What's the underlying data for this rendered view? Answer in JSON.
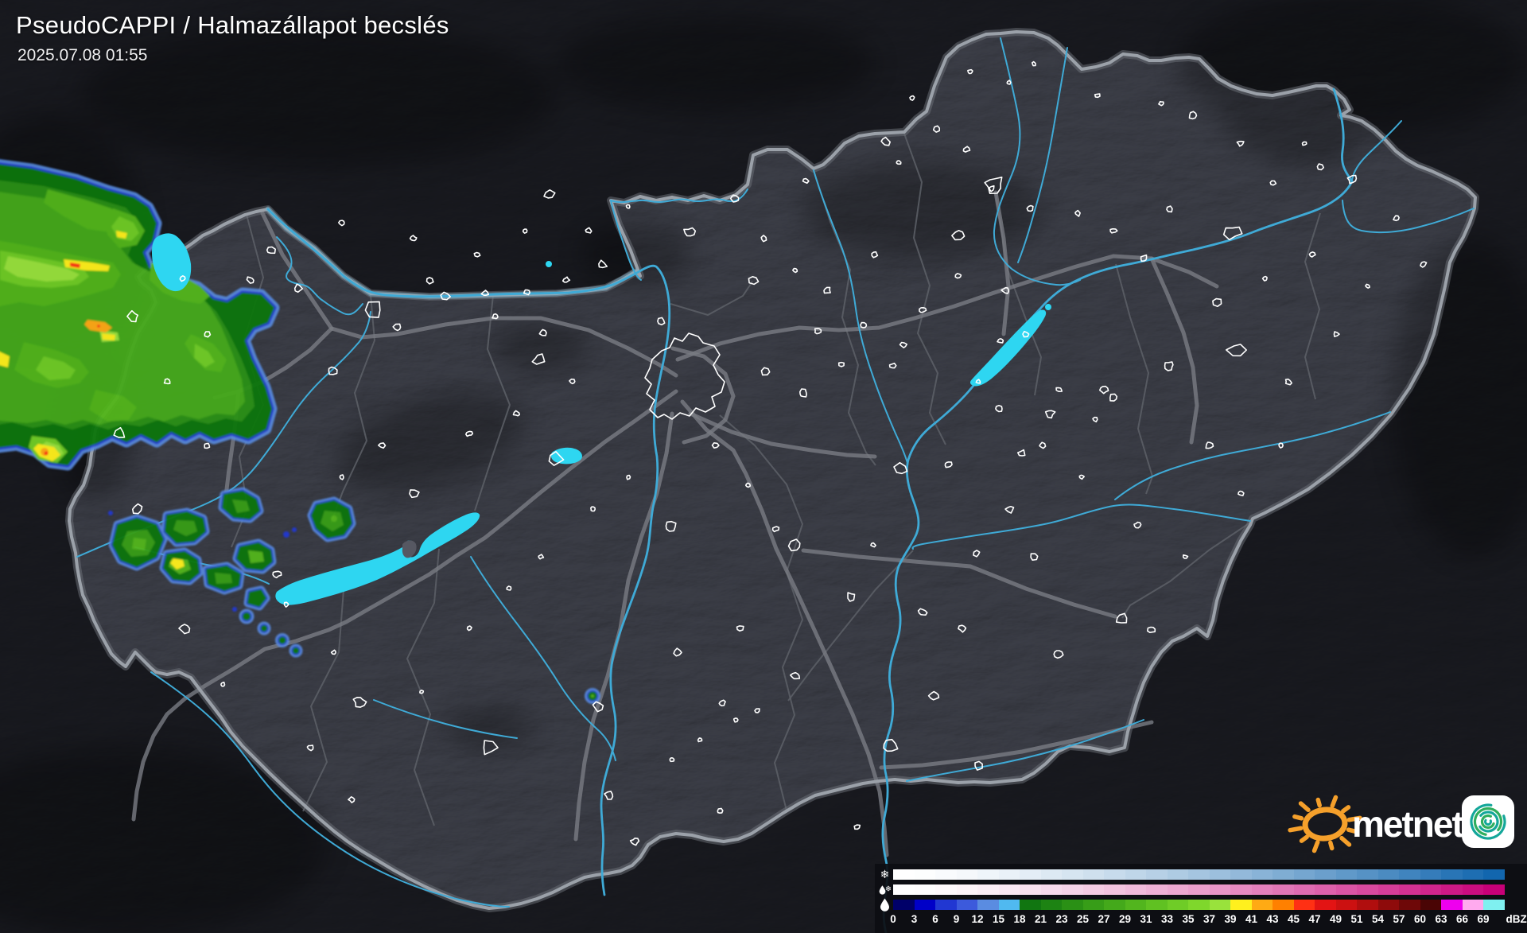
{
  "header": {
    "product_title": "PseudoCAPPI  / Halmazállapot becslés",
    "timestamp": "2025.07.08 01:55"
  },
  "branding": {
    "logo_text": "metnet",
    "sun_icon": "sun-icon",
    "sun_color": "#F5A02B",
    "app_icon": "metnet-spiral-app-icon",
    "app_icon_spiral_color": "#14A79A",
    "app_icon_spiral_color2": "#30AE5E"
  },
  "legend": {
    "unit_label": "dBZ",
    "tick_labels": [
      "0",
      "3",
      "6",
      "9",
      "12",
      "15",
      "18",
      "21",
      "23",
      "25",
      "27",
      "29",
      "31",
      "33",
      "35",
      "37",
      "39",
      "41",
      "43",
      "45",
      "47",
      "49",
      "51",
      "54",
      "57",
      "60",
      "63",
      "66",
      "69"
    ],
    "rows": [
      {
        "id": "snow",
        "icon": "snowflake-icon",
        "colors": [
          "#FFFFFF",
          "#FDFEFE",
          "#F9FBFD",
          "#F5F8FB",
          "#EFF5FA",
          "#EAF1F8",
          "#E4EDF6",
          "#DDE9F3",
          "#D6E5F1",
          "#CFE0EE",
          "#C7DBEC",
          "#BFD6E9",
          "#B7D0E6",
          "#AECBE3",
          "#A5C5E0",
          "#9CBFDD",
          "#93B9DA",
          "#89B3D7",
          "#7FADD3",
          "#75A6D0",
          "#6B9FCC",
          "#6099C9",
          "#5692C5",
          "#4B8BC1",
          "#4084BE",
          "#357CBA",
          "#2975B6",
          "#1E6EB2",
          "#1266AE"
        ]
      },
      {
        "id": "sleet",
        "icon": "sleet-icon",
        "colors": [
          "#FFFFFF",
          "#FEFDFE",
          "#FEF9FC",
          "#FDF4F9",
          "#FBEEF6",
          "#FAE8F3",
          "#F9E1EF",
          "#F7DAEC",
          "#F5D3E8",
          "#F4CBE3",
          "#F2C3DF",
          "#F0BADB",
          "#EEB1D6",
          "#ECA8D1",
          "#EA9ECC",
          "#E895C7",
          "#E68AC1",
          "#E480BC",
          "#E176B6",
          "#DF6BB1",
          "#DD60AB",
          "#DA54A5",
          "#D8499F",
          "#D53D99",
          "#D33192",
          "#D0258C",
          "#CD1985",
          "#CB0D7F",
          "#C80078"
        ]
      },
      {
        "id": "rain",
        "icon": "raindrop-icon",
        "colors": [
          "#000069",
          "#0000C8",
          "#2137D2",
          "#3C5ADC",
          "#5A8CE1",
          "#50B9F0",
          "#117611",
          "#1D8313",
          "#2A9015",
          "#379D18",
          "#44A91B",
          "#52B51E",
          "#60C122",
          "#6FCC27",
          "#7FD72C",
          "#99E23C",
          "#FFF01E",
          "#FFAA14",
          "#FF8000",
          "#FF3014",
          "#E31414",
          "#CC1111",
          "#B00E0E",
          "#8E0B0B",
          "#6E0808",
          "#4A0505",
          "#EE00EE",
          "#FFAAEE",
          "#7FF0F0"
        ]
      }
    ]
  },
  "map": {
    "background": "#26272D",
    "country_fill": "#565862",
    "outside_shade": "#101116",
    "border": "#9BA1A9",
    "county_line": "#5D6067",
    "motorway": "#797C83",
    "river": "#3FAAD6",
    "lake": "#2ED6F1",
    "city_outline": "#FFFFFF"
  }
}
